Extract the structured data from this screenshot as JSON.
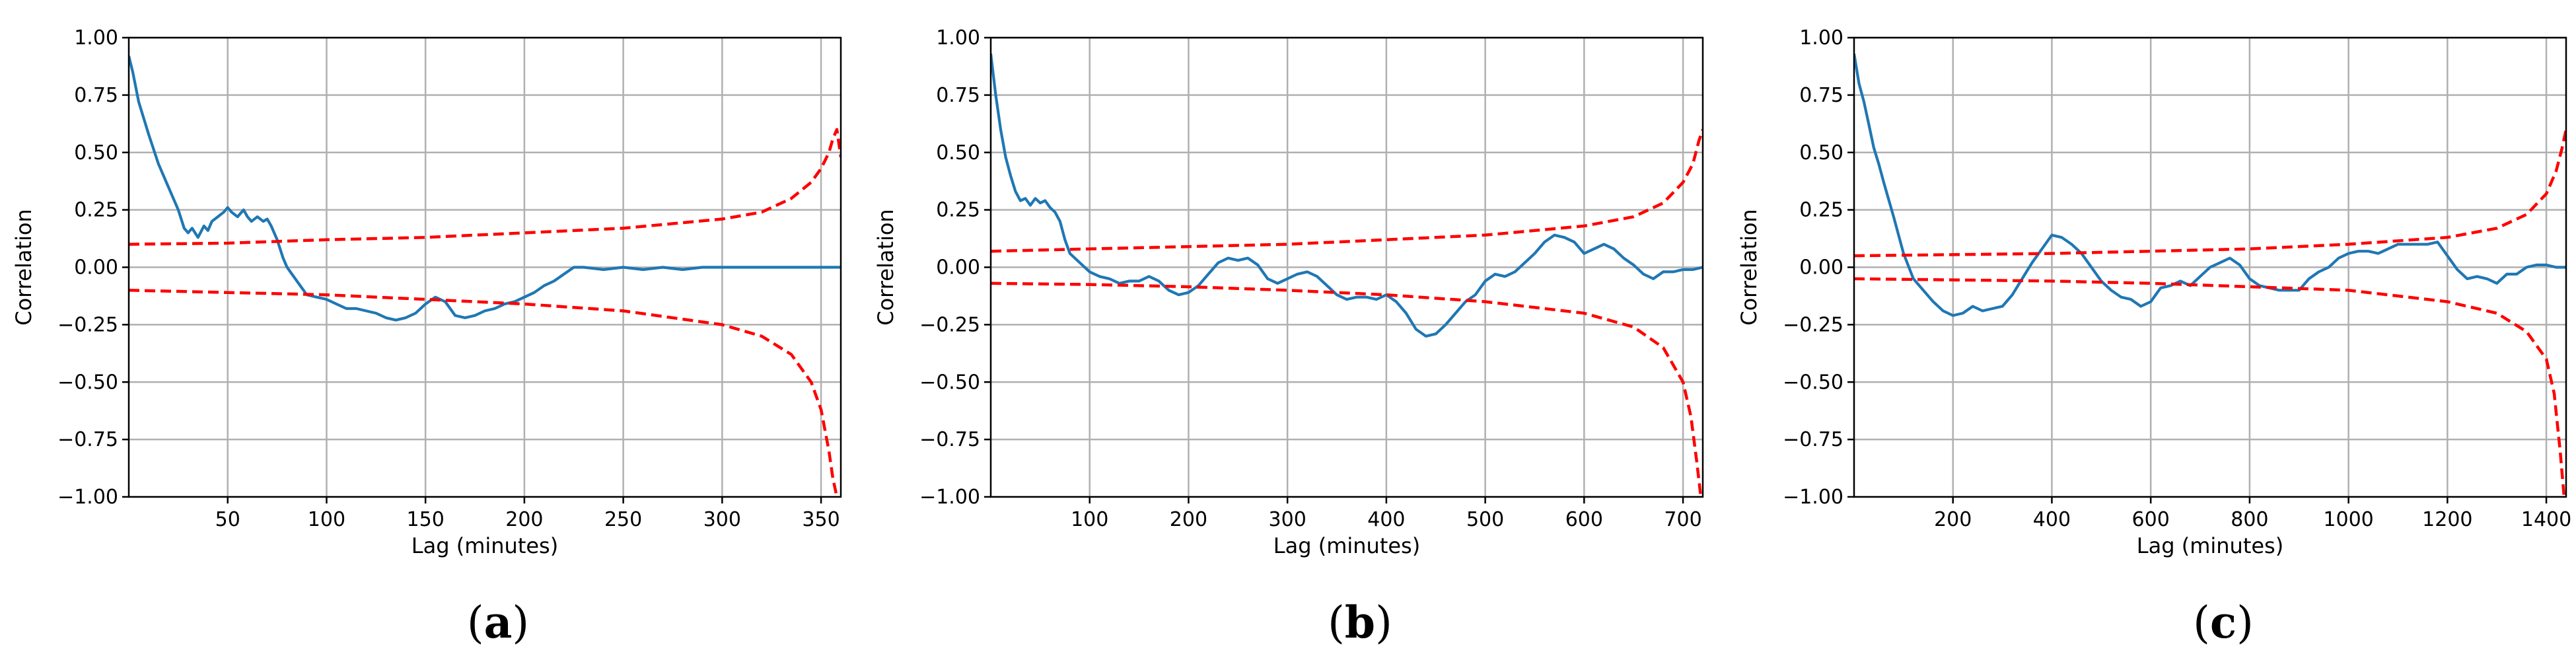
{
  "chart_data": [
    {
      "type": "line",
      "panel_label": "(a)",
      "panel_open": "(",
      "panel_letter": "a",
      "panel_close": ")",
      "xlabel": "Lag (minutes)",
      "ylabel": "Correlation",
      "xlim": [
        0,
        360
      ],
      "ylim": [
        -1.0,
        1.0
      ],
      "xticks": [
        50,
        100,
        150,
        200,
        250,
        300,
        350
      ],
      "xtick_labels": [
        "50",
        "100",
        "150",
        "200",
        "250",
        "300",
        "350"
      ],
      "yticks": [
        -1.0,
        -0.75,
        -0.5,
        -0.25,
        0.0,
        0.25,
        0.5,
        0.75,
        1.0
      ],
      "ytick_labels": [
        "−1.00",
        "−0.75",
        "−0.50",
        "−0.25",
        "0.00",
        "0.25",
        "0.50",
        "0.75",
        "1.00"
      ],
      "grid": true,
      "colors": {
        "acf": "#1f77b4",
        "bound": "#ff0000"
      },
      "series": [
        {
          "name": "autocorrelation",
          "x": [
            0,
            2,
            5,
            10,
            15,
            20,
            25,
            28,
            30,
            32,
            35,
            38,
            40,
            42,
            45,
            48,
            50,
            52,
            55,
            58,
            60,
            62,
            65,
            68,
            70,
            72,
            75,
            78,
            80,
            85,
            90,
            95,
            100,
            105,
            110,
            115,
            120,
            125,
            130,
            135,
            140,
            145,
            150,
            155,
            160,
            165,
            170,
            175,
            180,
            185,
            190,
            195,
            200,
            205,
            210,
            215,
            220,
            225,
            230,
            240,
            250,
            260,
            270,
            280,
            290,
            300,
            320,
            340,
            360
          ],
          "values": [
            0.92,
            0.85,
            0.72,
            0.58,
            0.45,
            0.35,
            0.25,
            0.17,
            0.15,
            0.17,
            0.13,
            0.18,
            0.16,
            0.2,
            0.22,
            0.24,
            0.26,
            0.24,
            0.22,
            0.25,
            0.22,
            0.2,
            0.22,
            0.2,
            0.21,
            0.18,
            0.12,
            0.04,
            0.0,
            -0.06,
            -0.12,
            -0.13,
            -0.14,
            -0.16,
            -0.18,
            -0.18,
            -0.19,
            -0.2,
            -0.22,
            -0.23,
            -0.22,
            -0.2,
            -0.16,
            -0.13,
            -0.15,
            -0.21,
            -0.22,
            -0.21,
            -0.19,
            -0.18,
            -0.16,
            -0.15,
            -0.13,
            -0.11,
            -0.08,
            -0.06,
            -0.03,
            0.0,
            0.0,
            -0.01,
            0.0,
            -0.01,
            0.0,
            -0.01,
            0.0,
            0.0,
            0.0,
            0.0,
            0.0
          ]
        },
        {
          "name": "upper bound",
          "x": [
            0,
            50,
            100,
            150,
            200,
            250,
            300,
            320,
            335,
            345,
            350,
            354,
            356,
            358,
            360
          ],
          "values": [
            0.1,
            0.105,
            0.12,
            0.13,
            0.15,
            0.17,
            0.21,
            0.24,
            0.3,
            0.37,
            0.43,
            0.5,
            0.56,
            0.6,
            0.48
          ]
        },
        {
          "name": "lower bound",
          "x": [
            0,
            50,
            100,
            150,
            200,
            250,
            300,
            320,
            335,
            345,
            350,
            354,
            356,
            358
          ],
          "values": [
            -0.1,
            -0.11,
            -0.12,
            -0.14,
            -0.16,
            -0.19,
            -0.25,
            -0.3,
            -0.38,
            -0.5,
            -0.62,
            -0.8,
            -0.92,
            -1.0
          ]
        }
      ]
    },
    {
      "type": "line",
      "panel_label": "(b)",
      "panel_open": "(",
      "panel_letter": "b",
      "panel_close": ")",
      "xlabel": "Lag (minutes)",
      "ylabel": "Correlation",
      "xlim": [
        0,
        720
      ],
      "ylim": [
        -1.0,
        1.0
      ],
      "xticks": [
        100,
        200,
        300,
        400,
        500,
        600,
        700
      ],
      "xtick_labels": [
        "100",
        "200",
        "300",
        "400",
        "500",
        "600",
        "700"
      ],
      "yticks": [
        -1.0,
        -0.75,
        -0.5,
        -0.25,
        0.0,
        0.25,
        0.5,
        0.75,
        1.0
      ],
      "ytick_labels": [
        "−1.00",
        "−0.75",
        "−0.50",
        "−0.25",
        "0.00",
        "0.25",
        "0.50",
        "0.75",
        "1.00"
      ],
      "grid": true,
      "colors": {
        "acf": "#1f77b4",
        "bound": "#ff0000"
      },
      "series": [
        {
          "name": "autocorrelation",
          "x": [
            0,
            5,
            10,
            15,
            20,
            25,
            30,
            35,
            40,
            45,
            50,
            55,
            60,
            65,
            70,
            75,
            80,
            90,
            100,
            110,
            120,
            130,
            140,
            150,
            160,
            170,
            180,
            190,
            200,
            210,
            220,
            230,
            240,
            250,
            260,
            270,
            280,
            290,
            300,
            310,
            320,
            330,
            340,
            350,
            360,
            370,
            380,
            390,
            400,
            410,
            420,
            430,
            440,
            450,
            460,
            470,
            480,
            490,
            500,
            510,
            520,
            530,
            540,
            550,
            560,
            570,
            580,
            590,
            600,
            610,
            620,
            630,
            640,
            650,
            660,
            670,
            680,
            690,
            700,
            710,
            720
          ],
          "values": [
            0.93,
            0.75,
            0.6,
            0.48,
            0.4,
            0.33,
            0.29,
            0.3,
            0.27,
            0.3,
            0.28,
            0.29,
            0.26,
            0.24,
            0.2,
            0.12,
            0.06,
            0.02,
            -0.02,
            -0.04,
            -0.05,
            -0.07,
            -0.06,
            -0.06,
            -0.04,
            -0.06,
            -0.1,
            -0.12,
            -0.11,
            -0.08,
            -0.03,
            0.02,
            0.04,
            0.03,
            0.04,
            0.01,
            -0.05,
            -0.07,
            -0.05,
            -0.03,
            -0.02,
            -0.04,
            -0.08,
            -0.12,
            -0.14,
            -0.13,
            -0.13,
            -0.14,
            -0.12,
            -0.15,
            -0.2,
            -0.27,
            -0.3,
            -0.29,
            -0.25,
            -0.2,
            -0.15,
            -0.12,
            -0.06,
            -0.03,
            -0.04,
            -0.02,
            0.02,
            0.06,
            0.11,
            0.14,
            0.13,
            0.11,
            0.06,
            0.08,
            0.1,
            0.08,
            0.04,
            0.01,
            -0.03,
            -0.05,
            -0.02,
            -0.02,
            -0.01,
            -0.01,
            0.0
          ]
        },
        {
          "name": "upper bound",
          "x": [
            0,
            100,
            200,
            300,
            400,
            500,
            600,
            650,
            680,
            700,
            710,
            716,
            720
          ],
          "values": [
            0.07,
            0.08,
            0.09,
            0.1,
            0.12,
            0.14,
            0.18,
            0.22,
            0.28,
            0.37,
            0.45,
            0.55,
            0.6
          ]
        },
        {
          "name": "lower bound",
          "x": [
            0,
            100,
            200,
            300,
            400,
            500,
            600,
            650,
            680,
            700,
            708,
            714,
            718
          ],
          "values": [
            -0.07,
            -0.075,
            -0.085,
            -0.1,
            -0.12,
            -0.15,
            -0.2,
            -0.26,
            -0.35,
            -0.5,
            -0.65,
            -0.85,
            -1.0
          ]
        }
      ]
    },
    {
      "type": "line",
      "panel_label": "(c)",
      "panel_open": "(",
      "panel_letter": "c",
      "panel_close": ")",
      "xlabel": "Lag (minutes)",
      "ylabel": "Correlation",
      "xlim": [
        0,
        1440
      ],
      "ylim": [
        -1.0,
        1.0
      ],
      "xticks": [
        200,
        400,
        600,
        800,
        1000,
        1200,
        1400
      ],
      "xtick_labels": [
        "200",
        "400",
        "600",
        "800",
        "1000",
        "1200",
        "1400"
      ],
      "yticks": [
        -1.0,
        -0.75,
        -0.5,
        -0.25,
        0.0,
        0.25,
        0.5,
        0.75,
        1.0
      ],
      "ytick_labels": [
        "−1.00",
        "−0.75",
        "−0.50",
        "−0.25",
        "0.00",
        "0.25",
        "0.50",
        "0.75",
        "1.00"
      ],
      "grid": true,
      "colors": {
        "acf": "#1f77b4",
        "bound": "#ff0000"
      },
      "series": [
        {
          "name": "autocorrelation",
          "x": [
            0,
            10,
            20,
            30,
            40,
            50,
            60,
            80,
            100,
            120,
            140,
            160,
            180,
            200,
            220,
            240,
            260,
            280,
            300,
            320,
            340,
            360,
            380,
            400,
            420,
            440,
            460,
            480,
            500,
            520,
            540,
            560,
            580,
            600,
            620,
            640,
            660,
            680,
            700,
            720,
            740,
            760,
            780,
            800,
            820,
            840,
            860,
            880,
            900,
            920,
            940,
            960,
            980,
            1000,
            1020,
            1040,
            1060,
            1080,
            1100,
            1120,
            1140,
            1160,
            1180,
            1200,
            1220,
            1240,
            1260,
            1280,
            1300,
            1320,
            1340,
            1360,
            1380,
            1400,
            1420,
            1440
          ],
          "values": [
            0.93,
            0.8,
            0.72,
            0.62,
            0.52,
            0.45,
            0.37,
            0.22,
            0.06,
            -0.05,
            -0.1,
            -0.15,
            -0.19,
            -0.21,
            -0.2,
            -0.17,
            -0.19,
            -0.18,
            -0.17,
            -0.12,
            -0.05,
            0.02,
            0.08,
            0.14,
            0.13,
            0.1,
            0.06,
            0.0,
            -0.06,
            -0.1,
            -0.13,
            -0.14,
            -0.17,
            -0.15,
            -0.09,
            -0.08,
            -0.06,
            -0.08,
            -0.04,
            0.0,
            0.02,
            0.04,
            0.01,
            -0.05,
            -0.08,
            -0.09,
            -0.1,
            -0.1,
            -0.1,
            -0.05,
            -0.02,
            0.0,
            0.04,
            0.06,
            0.07,
            0.07,
            0.06,
            0.08,
            0.1,
            0.1,
            0.1,
            0.1,
            0.11,
            0.05,
            -0.01,
            -0.05,
            -0.04,
            -0.05,
            -0.07,
            -0.03,
            -0.03,
            0.0,
            0.01,
            0.01,
            0.0,
            0.0
          ]
        },
        {
          "name": "upper bound",
          "x": [
            0,
            200,
            400,
            600,
            800,
            1000,
            1200,
            1300,
            1360,
            1400,
            1420,
            1432,
            1440
          ],
          "values": [
            0.05,
            0.055,
            0.06,
            0.07,
            0.08,
            0.1,
            0.13,
            0.17,
            0.23,
            0.32,
            0.42,
            0.52,
            0.6
          ]
        },
        {
          "name": "lower bound",
          "x": [
            0,
            200,
            400,
            600,
            800,
            1000,
            1200,
            1300,
            1360,
            1400,
            1416,
            1428,
            1436
          ],
          "values": [
            -0.05,
            -0.055,
            -0.06,
            -0.07,
            -0.085,
            -0.1,
            -0.15,
            -0.2,
            -0.28,
            -0.4,
            -0.55,
            -0.8,
            -1.0
          ]
        }
      ]
    }
  ]
}
